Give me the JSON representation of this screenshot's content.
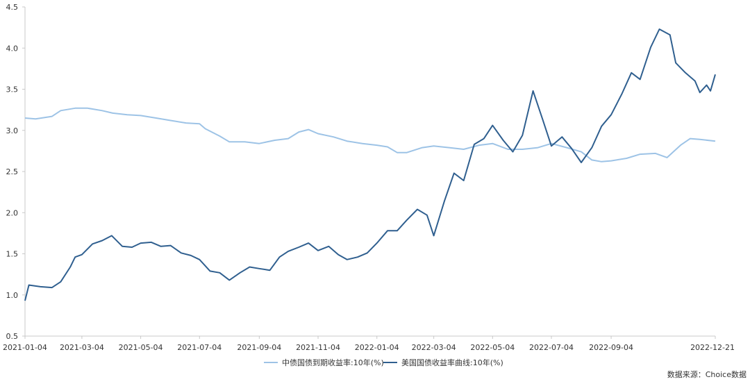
{
  "chart_data": {
    "type": "line",
    "title": "",
    "xlabel": "",
    "ylabel": "",
    "ylim": [
      0.5,
      4.5
    ],
    "yticks": [
      "4.5",
      "4.0",
      "3.5",
      "3.0",
      "2.5",
      "2.0",
      "1.5",
      "1.0",
      "0.5"
    ],
    "x_range": [
      "2021-01-04",
      "2022-12-21"
    ],
    "xticks": [
      "2021-01-04",
      "2021-03-04",
      "2021-05-04",
      "2021-07-04",
      "2021-09-04",
      "2021-11-04",
      "2022-01-04",
      "2022-03-04",
      "2022-05-04",
      "2022-07-04",
      "2022-09-04",
      "2022-12-21"
    ],
    "grid": false,
    "legend_position": "bottom",
    "source_note": "数据来源：Choice数据",
    "series": [
      {
        "name": "中债国债到期收益率:10年(%)",
        "color": "#9dc3e6",
        "points": [
          [
            "2021-01-04",
            3.15
          ],
          [
            "2021-01-15",
            3.14
          ],
          [
            "2021-02-01",
            3.17
          ],
          [
            "2021-02-10",
            3.24
          ],
          [
            "2021-02-25",
            3.27
          ],
          [
            "2021-03-10",
            3.27
          ],
          [
            "2021-03-25",
            3.24
          ],
          [
            "2021-04-05",
            3.21
          ],
          [
            "2021-04-20",
            3.19
          ],
          [
            "2021-05-04",
            3.18
          ],
          [
            "2021-05-20",
            3.15
          ],
          [
            "2021-06-04",
            3.12
          ],
          [
            "2021-06-20",
            3.09
          ],
          [
            "2021-07-04",
            3.08
          ],
          [
            "2021-07-10",
            3.02
          ],
          [
            "2021-07-25",
            2.93
          ],
          [
            "2021-08-04",
            2.86
          ],
          [
            "2021-08-20",
            2.86
          ],
          [
            "2021-09-04",
            2.84
          ],
          [
            "2021-09-20",
            2.88
          ],
          [
            "2021-10-04",
            2.9
          ],
          [
            "2021-10-15",
            2.98
          ],
          [
            "2021-10-25",
            3.01
          ],
          [
            "2021-11-04",
            2.96
          ],
          [
            "2021-11-20",
            2.92
          ],
          [
            "2021-12-04",
            2.87
          ],
          [
            "2021-12-20",
            2.84
          ],
          [
            "2022-01-04",
            2.82
          ],
          [
            "2022-01-15",
            2.8
          ],
          [
            "2022-01-25",
            2.73
          ],
          [
            "2022-02-04",
            2.73
          ],
          [
            "2022-02-20",
            2.79
          ],
          [
            "2022-03-04",
            2.81
          ],
          [
            "2022-03-20",
            2.79
          ],
          [
            "2022-04-04",
            2.77
          ],
          [
            "2022-04-20",
            2.82
          ],
          [
            "2022-05-04",
            2.84
          ],
          [
            "2022-05-20",
            2.77
          ],
          [
            "2022-06-04",
            2.77
          ],
          [
            "2022-06-20",
            2.79
          ],
          [
            "2022-07-04",
            2.84
          ],
          [
            "2022-07-20",
            2.79
          ],
          [
            "2022-08-04",
            2.74
          ],
          [
            "2022-08-15",
            2.64
          ],
          [
            "2022-08-25",
            2.62
          ],
          [
            "2022-09-04",
            2.63
          ],
          [
            "2022-09-20",
            2.66
          ],
          [
            "2022-10-04",
            2.71
          ],
          [
            "2022-10-20",
            2.72
          ],
          [
            "2022-11-01",
            2.67
          ],
          [
            "2022-11-15",
            2.82
          ],
          [
            "2022-11-25",
            2.9
          ],
          [
            "2022-12-05",
            2.89
          ],
          [
            "2022-12-21",
            2.87
          ]
        ]
      },
      {
        "name": "美国国债收益率曲线:10年(%)",
        "color": "#2f5f8f",
        "points": [
          [
            "2021-01-04",
            0.93
          ],
          [
            "2021-01-08",
            1.12
          ],
          [
            "2021-01-20",
            1.1
          ],
          [
            "2021-02-01",
            1.09
          ],
          [
            "2021-02-10",
            1.16
          ],
          [
            "2021-02-20",
            1.34
          ],
          [
            "2021-02-25",
            1.46
          ],
          [
            "2021-03-04",
            1.49
          ],
          [
            "2021-03-15",
            1.62
          ],
          [
            "2021-03-25",
            1.66
          ],
          [
            "2021-04-04",
            1.72
          ],
          [
            "2021-04-15",
            1.59
          ],
          [
            "2021-04-25",
            1.58
          ],
          [
            "2021-05-04",
            1.63
          ],
          [
            "2021-05-15",
            1.64
          ],
          [
            "2021-05-25",
            1.59
          ],
          [
            "2021-06-04",
            1.6
          ],
          [
            "2021-06-15",
            1.51
          ],
          [
            "2021-06-25",
            1.48
          ],
          [
            "2021-07-04",
            1.43
          ],
          [
            "2021-07-15",
            1.29
          ],
          [
            "2021-07-25",
            1.27
          ],
          [
            "2021-08-04",
            1.18
          ],
          [
            "2021-08-15",
            1.27
          ],
          [
            "2021-08-25",
            1.34
          ],
          [
            "2021-09-04",
            1.32
          ],
          [
            "2021-09-15",
            1.3
          ],
          [
            "2021-09-25",
            1.46
          ],
          [
            "2021-10-04",
            1.53
          ],
          [
            "2021-10-15",
            1.58
          ],
          [
            "2021-10-25",
            1.63
          ],
          [
            "2021-11-04",
            1.54
          ],
          [
            "2021-11-15",
            1.59
          ],
          [
            "2021-11-25",
            1.49
          ],
          [
            "2021-12-04",
            1.43
          ],
          [
            "2021-12-15",
            1.46
          ],
          [
            "2021-12-25",
            1.51
          ],
          [
            "2022-01-04",
            1.63
          ],
          [
            "2022-01-15",
            1.78
          ],
          [
            "2022-01-25",
            1.78
          ],
          [
            "2022-02-04",
            1.91
          ],
          [
            "2022-02-15",
            2.04
          ],
          [
            "2022-02-25",
            1.97
          ],
          [
            "2022-03-04",
            1.72
          ],
          [
            "2022-03-15",
            2.14
          ],
          [
            "2022-03-25",
            2.48
          ],
          [
            "2022-04-04",
            2.39
          ],
          [
            "2022-04-15",
            2.83
          ],
          [
            "2022-04-25",
            2.9
          ],
          [
            "2022-05-04",
            3.06
          ],
          [
            "2022-05-15",
            2.88
          ],
          [
            "2022-05-25",
            2.74
          ],
          [
            "2022-06-04",
            2.94
          ],
          [
            "2022-06-15",
            3.48
          ],
          [
            "2022-06-25",
            3.13
          ],
          [
            "2022-07-04",
            2.81
          ],
          [
            "2022-07-15",
            2.92
          ],
          [
            "2022-07-25",
            2.78
          ],
          [
            "2022-08-04",
            2.61
          ],
          [
            "2022-08-15",
            2.79
          ],
          [
            "2022-08-25",
            3.05
          ],
          [
            "2022-09-04",
            3.19
          ],
          [
            "2022-09-15",
            3.44
          ],
          [
            "2022-09-25",
            3.7
          ],
          [
            "2022-10-04",
            3.62
          ],
          [
            "2022-10-15",
            4.01
          ],
          [
            "2022-10-24",
            4.23
          ],
          [
            "2022-11-04",
            4.16
          ],
          [
            "2022-11-10",
            3.82
          ],
          [
            "2022-11-20",
            3.7
          ],
          [
            "2022-11-30",
            3.6
          ],
          [
            "2022-12-05",
            3.46
          ],
          [
            "2022-12-12",
            3.55
          ],
          [
            "2022-12-16",
            3.48
          ],
          [
            "2022-12-21",
            3.68
          ]
        ]
      }
    ]
  }
}
